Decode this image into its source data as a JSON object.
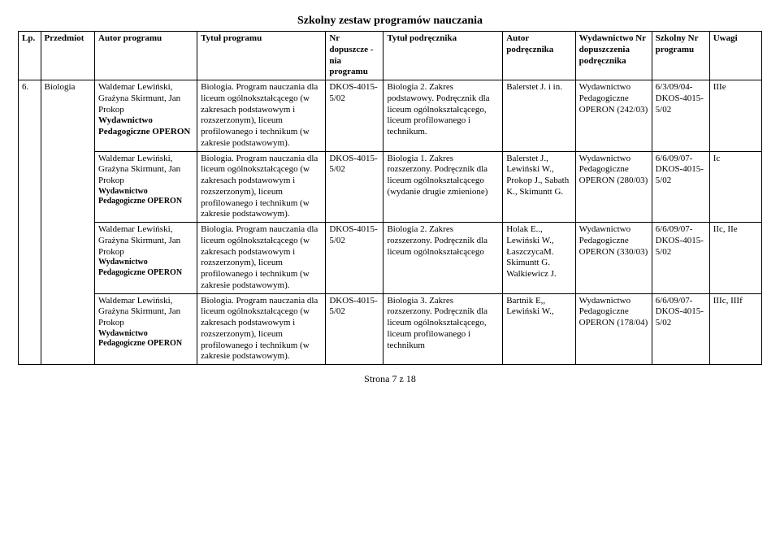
{
  "title": "Szkolny  zestaw programów nauczania",
  "headers": {
    "lp": "Lp.",
    "subject": "Przedmiot",
    "author": "Autor programu",
    "program": "Tytuł programu",
    "approval": "Nr\ndopuszcze\n-nia\nprogramu",
    "textbookTitle": "Tytuł podręcznika",
    "textbookAuthor": "Autor\npodręcznika",
    "publisher": "Wydawnictwo\nNr\ndopuszczenia\npodręcznika",
    "schoolNo": "Szkolny\nNr\nprogramu",
    "notes": "Uwagi"
  },
  "rows": [
    {
      "lp": "6.",
      "subject": "Biologia",
      "author": "Waldemar Lewiński, Grażyna Skirmunt, Jan Prokop\nWydawnictwo Pedagogiczne OPERON",
      "authorBoldTail": "Wydawnictwo Pedagogiczne OPERON",
      "program": "Biologia. Program nauczania dla liceum ogólnokształcącego (w zakresach podstawowym i rozszerzonym), liceum profilowanego i technikum (w zakresie podstawowym).",
      "approval": "DKOS-4015-5/02",
      "textbookTitle": "Biologia 2. Zakres podstawowy. Podręcznik dla liceum ogólnokształcącego, liceum profilowanego i technikum.",
      "textbookAuthor": "Balerstet J. i in.",
      "publisher": "Wydawnictwo Pedagogiczne OPERON (242/03)",
      "schoolNo": "6/3/09/04-DKOS-4015-5/02",
      "notes": "IIIe"
    },
    {
      "lp": "",
      "subject": "",
      "author": "Waldemar Lewiński, Grażyna Skirmunt, Jan Prokop\nWydawnictwo Pedagogiczne OPERON",
      "authorBoldTail": "Wydawnictwo Pedagogiczne OPERON",
      "authorTailSmall": true,
      "program": "Biologia. Program nauczania dla liceum ogólnokształcącego (w zakresach podstawowym i rozszerzonym), liceum profilowanego i technikum (w zakresie podstawowym).",
      "approval": "DKOS-4015-5/02",
      "textbookTitle": "Biologia 1. Zakres rozszerzony. Podręcznik dla liceum ogólnokształcącego (wydanie drugie zmienione)",
      "textbookAuthor": "Balerstet J., Lewiński W., Prokop J., Sabath K., Skimuntt G.",
      "publisher": "Wydawnictwo Pedagogiczne OPERON (280/03)",
      "schoolNo": "6/6/09/07-DKOS-4015-5/02",
      "notes": "Ic"
    },
    {
      "lp": "",
      "subject": "",
      "author": "Waldemar Lewiński, Grażyna Skirmunt, Jan Prokop\nWydawnictwo Pedagogiczne OPERON",
      "authorBoldTail": "Wydawnictwo Pedagogiczne OPERON",
      "authorTailSmall": true,
      "program": "Biologia. Program nauczania dla liceum ogólnokształcącego (w zakresach podstawowym i rozszerzonym), liceum profilowanego i technikum (w zakresie podstawowym).",
      "approval": "DKOS-4015-5/02",
      "textbookTitle": "Biologia 2. Zakres rozszerzony. Podręcznik dla liceum ogólnokształcącego",
      "textbookAuthor": "Holak E.., Lewiński W., ŁaszczycaM. Skimuntt G. Walkiewicz J.",
      "publisher": "Wydawnictwo Pedagogiczne OPERON (330/03)",
      "schoolNo": "6/6/09/07-DKOS-4015-5/02",
      "notes": "IIc, IIe"
    },
    {
      "lp": "",
      "subject": "",
      "author": "Waldemar Lewiński, Grażyna Skirmunt, Jan Prokop\nWydawnictwo Pedagogiczne OPERON",
      "authorBoldTail": "Wydawnictwo Pedagogiczne OPERON",
      "authorTailSmall": true,
      "program": "Biologia. Program nauczania dla liceum ogólnokształcącego (w zakresach podstawowym i rozszerzonym), liceum profilowanego i technikum (w zakresie podstawowym).",
      "approval": "DKOS-4015-5/02",
      "textbookTitle": "Biologia 3. Zakres rozszerzony. Podręcznik dla liceum ogólnokształcącego, liceum profilowanego i technikum",
      "textbookAuthor": "Bartnik E,, Lewiński W.,",
      "publisher": "Wydawnictwo Pedagogiczne OPERON (178/04)",
      "schoolNo": "6/6/09/07-DKOS-4015-5/02",
      "notes": "IIIc, IIIf"
    }
  ],
  "footer": "Strona  7 z 18"
}
